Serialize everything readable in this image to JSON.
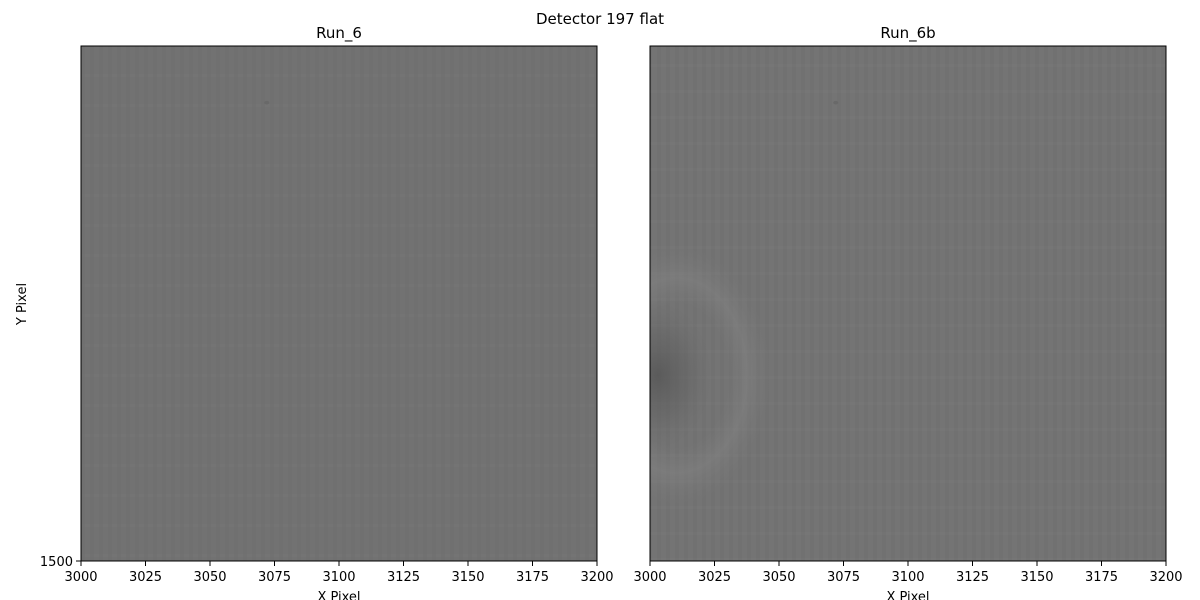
{
  "figure": {
    "suptitle": "Detector 197 flat",
    "ylabel": "Y Pixel",
    "xlabel": "X Pixel"
  },
  "chart_data": [
    {
      "type": "heatmap",
      "title": "Run_6",
      "xlabel": "X Pixel",
      "ylabel": "Y Pixel",
      "xlim": [
        3000,
        3200
      ],
      "ylim": [
        1500,
        1700
      ],
      "xticks": [
        3000,
        3025,
        3050,
        3075,
        3100,
        3125,
        3150,
        3175,
        3200
      ],
      "yticks": [
        1500
      ],
      "colormap": "gray",
      "base_color": "#727272",
      "features": [
        {
          "kind": "dust-spot",
          "x": 3072,
          "y": 1678,
          "color": "#666666"
        }
      ]
    },
    {
      "type": "heatmap",
      "title": "Run_6b",
      "xlabel": "X Pixel",
      "xlim": [
        3000,
        3200
      ],
      "ylim": [
        1500,
        1700
      ],
      "xticks": [
        3000,
        3025,
        3050,
        3075,
        3100,
        3125,
        3150,
        3175,
        3200
      ],
      "yticks": [],
      "colormap": "gray",
      "base_color": "#747474",
      "features": [
        {
          "kind": "dust-spot",
          "x": 3072,
          "y": 1678,
          "color": "#666666"
        },
        {
          "kind": "dark-blob",
          "x": 3003,
          "y": 1572,
          "color": "#5e5e5e"
        },
        {
          "kind": "light-halo",
          "x": 3010,
          "y": 1572,
          "color": "#7e7e7e"
        }
      ]
    }
  ]
}
